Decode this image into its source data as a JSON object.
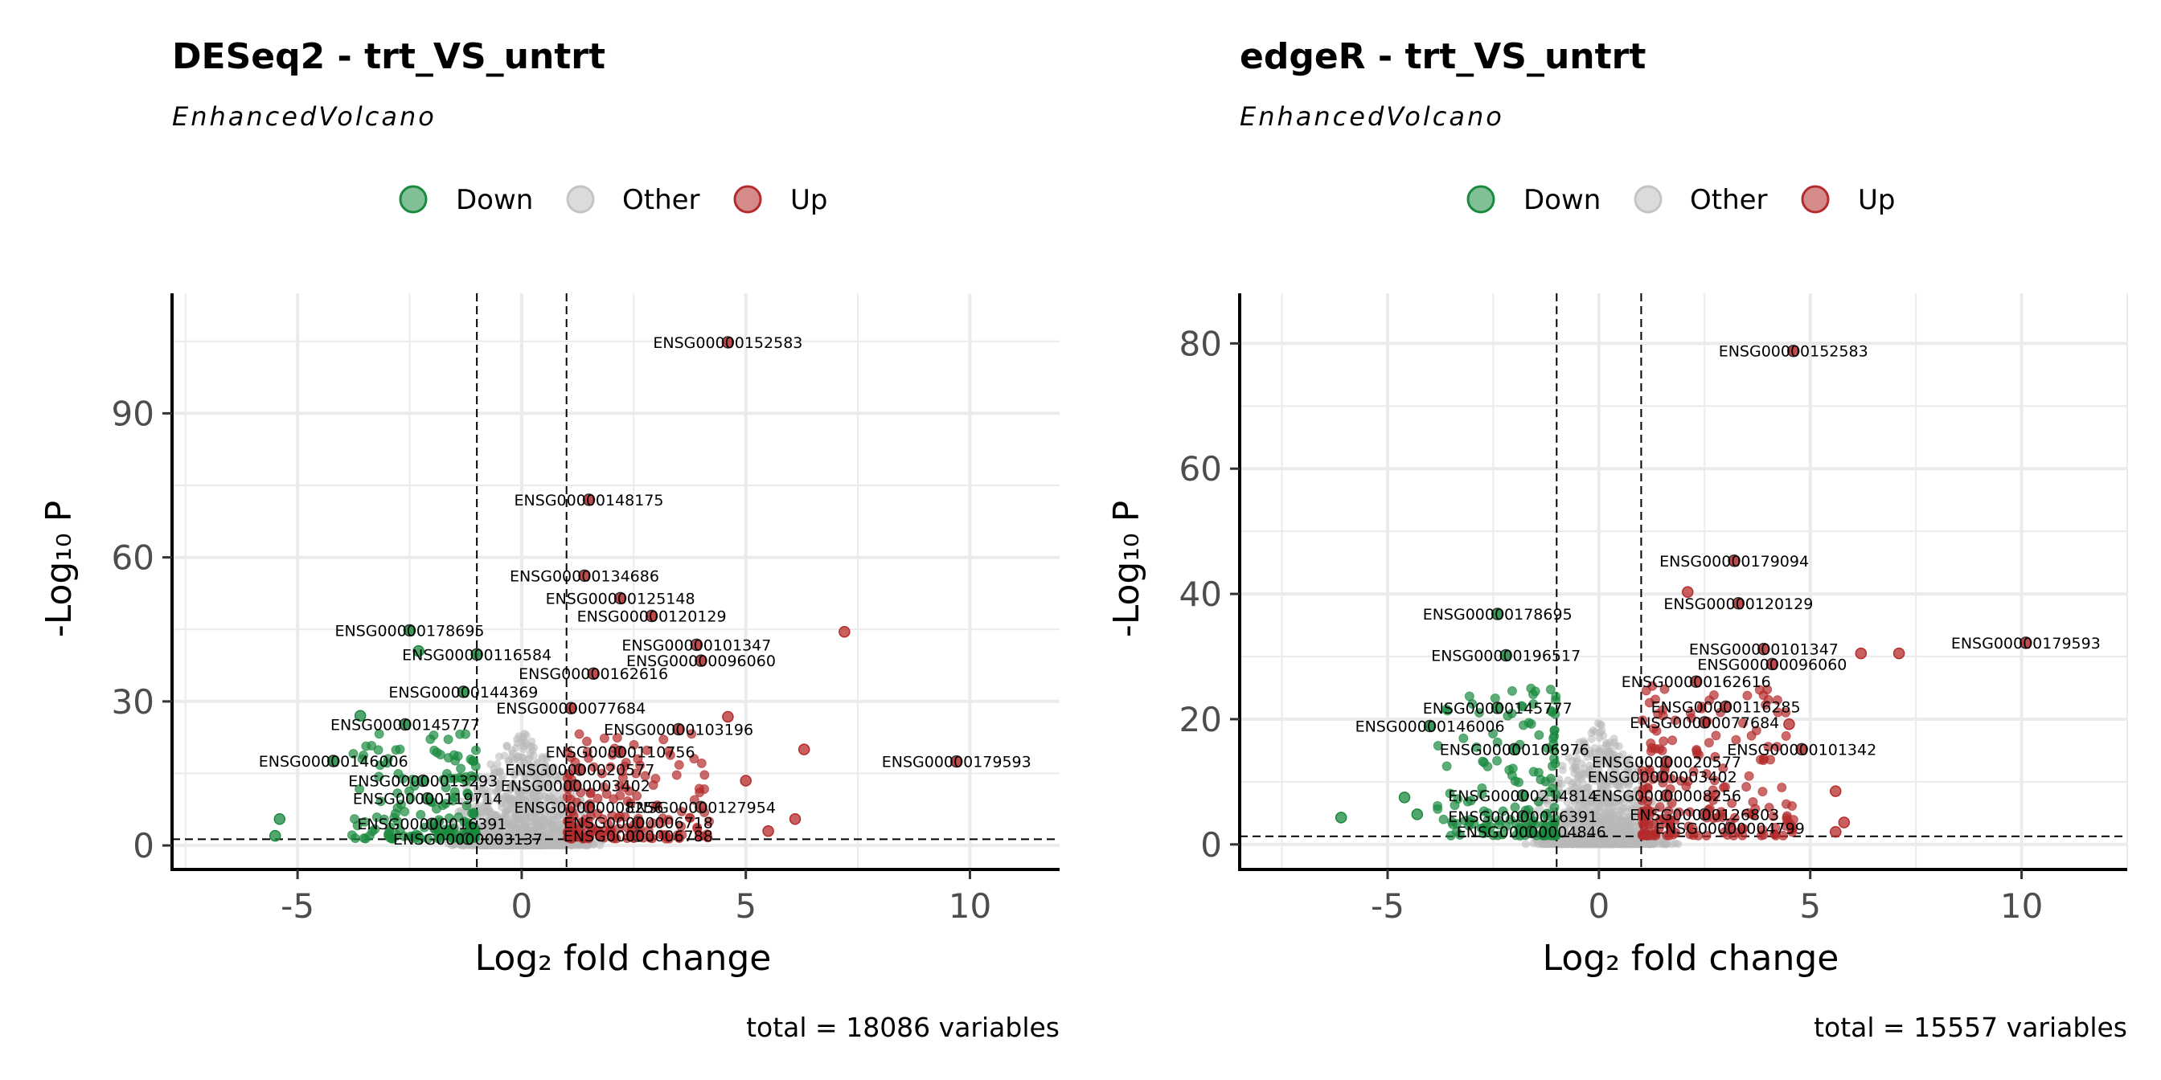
{
  "colors": {
    "down": "#1a8a3e",
    "other": "#b8b8b8",
    "up": "#b52b2b",
    "grid": "#ebebeb",
    "axis": "#000000"
  },
  "legend": {
    "items": [
      "Down",
      "Other",
      "Up"
    ]
  },
  "chart_data": [
    {
      "type": "scatter",
      "title": "DESeq2 - trt_VS_untrt",
      "subtitle": "EnhancedVolcano",
      "xlabel": "Log₂ fold change",
      "ylabel": "-Log₁₀ P",
      "caption": "total = 18086 variables",
      "xlim": [
        -7.8,
        12
      ],
      "ylim": [
        -5,
        115
      ],
      "xticks": [
        -5,
        0,
        5,
        10
      ],
      "yticks": [
        0,
        30,
        60,
        90
      ],
      "fc_cutoff": 1,
      "p_cutoff_line": 1.3,
      "legend_position": "top",
      "labeled_points": [
        {
          "label": "ENSG00000152583",
          "x": 4.6,
          "y": 104.8,
          "group": "Up"
        },
        {
          "label": "ENSG00000148175",
          "x": 1.5,
          "y": 72.0,
          "group": "Up"
        },
        {
          "label": "ENSG00000134686",
          "x": 1.4,
          "y": 56.2,
          "group": "Up"
        },
        {
          "label": "ENSG00000125148",
          "x": 2.2,
          "y": 51.5,
          "group": "Up"
        },
        {
          "label": "ENSG00000120129",
          "x": 2.9,
          "y": 47.8,
          "group": "Up"
        },
        {
          "label": "ENSG00000178695",
          "x": -2.5,
          "y": 44.8,
          "group": "Down"
        },
        {
          "label": "ENSG00000101347",
          "x": 3.9,
          "y": 41.8,
          "group": "Up"
        },
        {
          "label": "ENSG00000116584",
          "x": -1.0,
          "y": 39.8,
          "group": "Down"
        },
        {
          "label": "ENSG00000096060",
          "x": 4.0,
          "y": 38.5,
          "group": "Up"
        },
        {
          "label": "ENSG00000162616",
          "x": 1.6,
          "y": 35.8,
          "group": "Up"
        },
        {
          "label": "ENSG00000144369",
          "x": -1.3,
          "y": 32.0,
          "group": "Down"
        },
        {
          "label": "ENSG00000077684",
          "x": 1.1,
          "y": 28.6,
          "group": "Up"
        },
        {
          "label": "ENSG00000103196",
          "x": 3.5,
          "y": 24.2,
          "group": "Up"
        },
        {
          "label": "ENSG00000145777",
          "x": -2.6,
          "y": 25.2,
          "group": "Down"
        },
        {
          "label": "ENSG00000110756",
          "x": 2.2,
          "y": 19.5,
          "group": "Up"
        },
        {
          "label": "ENSG00000179593",
          "x": 9.7,
          "y": 17.5,
          "group": "Up"
        },
        {
          "label": "ENSG00000146006",
          "x": -4.2,
          "y": 17.6,
          "group": "Down"
        },
        {
          "label": "ENSG00000020577",
          "x": 1.3,
          "y": 15.8,
          "group": "Up"
        },
        {
          "label": "ENSG00000013293",
          "x": -2.2,
          "y": 13.5,
          "group": "Down"
        },
        {
          "label": "ENSG00000003402",
          "x": 1.2,
          "y": 12.5,
          "group": "Up"
        },
        {
          "label": "ENSG00000119714",
          "x": -2.1,
          "y": 9.8,
          "group": "Down"
        },
        {
          "label": "ENSG00000008256",
          "x": 1.5,
          "y": 8.0,
          "group": "Up"
        },
        {
          "label": "ENSG00000127954",
          "x": 4.0,
          "y": 8.0,
          "group": "Up"
        },
        {
          "label": "ENSG00000016391",
          "x": -2.0,
          "y": 4.5,
          "group": "Down"
        },
        {
          "label": "ENSG00000006718",
          "x": 2.6,
          "y": 4.8,
          "group": "Up"
        },
        {
          "label": "ENSG00000003137",
          "x": -1.2,
          "y": 1.4,
          "group": "Down"
        },
        {
          "label": "ENSG00000006788",
          "x": 2.6,
          "y": 2.0,
          "group": "Up"
        }
      ],
      "extra_points": [
        {
          "x": 7.2,
          "y": 44.5,
          "group": "Up"
        },
        {
          "x": 6.3,
          "y": 20.0,
          "group": "Up"
        },
        {
          "x": -5.4,
          "y": 5.5,
          "group": "Down"
        },
        {
          "x": -5.5,
          "y": 2.0,
          "group": "Down"
        },
        {
          "x": -3.6,
          "y": 27.0,
          "group": "Down"
        },
        {
          "x": -2.3,
          "y": 40.5,
          "group": "Down"
        },
        {
          "x": 4.6,
          "y": 26.8,
          "group": "Up"
        },
        {
          "x": 5.0,
          "y": 13.5,
          "group": "Up"
        },
        {
          "x": 6.1,
          "y": 5.5,
          "group": "Up"
        },
        {
          "x": 5.5,
          "y": 3.0,
          "group": "Up"
        }
      ]
    },
    {
      "type": "scatter",
      "title": "edgeR - trt_VS_untrt",
      "subtitle": "EnhancedVolcano",
      "xlabel": "Log₂ fold change",
      "ylabel": "-Log₁₀ P",
      "caption": "total = 15557 variables",
      "xlim": [
        -8.5,
        12.5
      ],
      "ylim": [
        -4,
        88
      ],
      "xticks": [
        -5,
        0,
        5,
        10
      ],
      "yticks": [
        0,
        20,
        40,
        60,
        80
      ],
      "fc_cutoff": 1,
      "p_cutoff_line": 1.3,
      "legend_position": "top",
      "labeled_points": [
        {
          "label": "ENSG00000152583",
          "x": 4.6,
          "y": 78.8,
          "group": "Up"
        },
        {
          "label": "ENSG00000179094",
          "x": 3.2,
          "y": 45.3,
          "group": "Up"
        },
        {
          "label": "ENSG00000120129",
          "x": 3.3,
          "y": 38.5,
          "group": "Up"
        },
        {
          "label": "ENSG00000178695",
          "x": -2.4,
          "y": 36.8,
          "group": "Down"
        },
        {
          "label": "ENSG00000101347",
          "x": 3.9,
          "y": 31.2,
          "group": "Up"
        },
        {
          "label": "ENSG00000179593",
          "x": 10.1,
          "y": 32.2,
          "group": "Up"
        },
        {
          "label": "ENSG00000096060",
          "x": 4.1,
          "y": 28.8,
          "group": "Up"
        },
        {
          "label": "ENSG00000196517",
          "x": -2.2,
          "y": 30.2,
          "group": "Down"
        },
        {
          "label": "ENSG00000162616",
          "x": 2.3,
          "y": 26.0,
          "group": "Up"
        },
        {
          "label": "ENSG00000145777",
          "x": -2.4,
          "y": 21.8,
          "group": "Down"
        },
        {
          "label": "ENSG00000116285",
          "x": 3.0,
          "y": 22.0,
          "group": "Up"
        },
        {
          "label": "ENSG00000146006",
          "x": -4.0,
          "y": 18.9,
          "group": "Down"
        },
        {
          "label": "ENSG00000077684",
          "x": 2.5,
          "y": 19.5,
          "group": "Up"
        },
        {
          "label": "ENSG00000106976",
          "x": -2.0,
          "y": 15.2,
          "group": "Down"
        },
        {
          "label": "ENSG00000101342",
          "x": 4.8,
          "y": 15.2,
          "group": "Up"
        },
        {
          "label": "ENSG00000020577",
          "x": 1.6,
          "y": 13.2,
          "group": "Up"
        },
        {
          "label": "ENSG00000003402",
          "x": 1.5,
          "y": 10.8,
          "group": "Up"
        },
        {
          "label": "ENSG00000214814",
          "x": -1.8,
          "y": 7.8,
          "group": "Down"
        },
        {
          "label": "ENSG00000008256",
          "x": 1.6,
          "y": 7.8,
          "group": "Up"
        },
        {
          "label": "ENSG00000016391",
          "x": -1.8,
          "y": 4.5,
          "group": "Down"
        },
        {
          "label": "ENSG00000126803",
          "x": 2.5,
          "y": 4.8,
          "group": "Up"
        },
        {
          "label": "ENSG00000004846",
          "x": -1.6,
          "y": 2.0,
          "group": "Down"
        },
        {
          "label": "ENSG00000004799",
          "x": 3.1,
          "y": 2.6,
          "group": "Up"
        }
      ],
      "extra_points": [
        {
          "x": 7.1,
          "y": 30.5,
          "group": "Up"
        },
        {
          "x": 6.2,
          "y": 30.5,
          "group": "Up"
        },
        {
          "x": 2.1,
          "y": 40.3,
          "group": "Up"
        },
        {
          "x": -6.1,
          "y": 4.3,
          "group": "Down"
        },
        {
          "x": -4.6,
          "y": 7.5,
          "group": "Down"
        },
        {
          "x": -4.3,
          "y": 4.8,
          "group": "Down"
        },
        {
          "x": 5.6,
          "y": 8.5,
          "group": "Up"
        },
        {
          "x": 5.8,
          "y": 3.5,
          "group": "Up"
        },
        {
          "x": 5.6,
          "y": 2.0,
          "group": "Up"
        },
        {
          "x": 4.5,
          "y": 19.2,
          "group": "Up"
        }
      ]
    }
  ]
}
